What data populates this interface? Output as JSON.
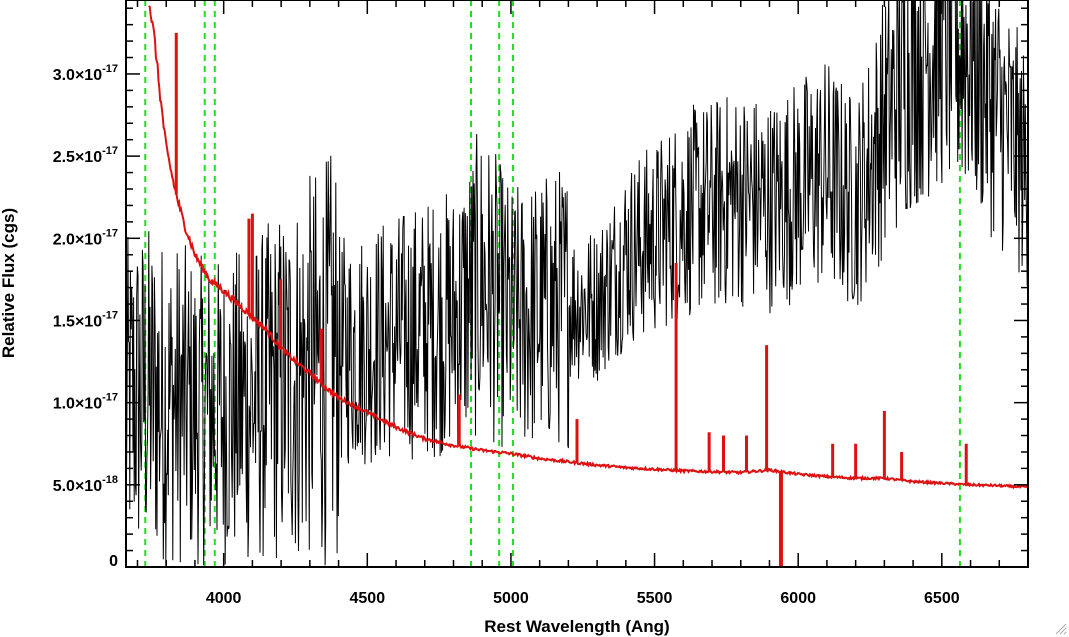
{
  "chart_data": {
    "type": "line",
    "title": "",
    "xlabel": "Rest Wavelength (Ang)",
    "ylabel": "Relative Flux (cgs)",
    "xlim": [
      3660,
      6800
    ],
    "ylim": [
      0,
      3.45e-17
    ],
    "x_ticks": [
      {
        "value": 4000,
        "label": "4000"
      },
      {
        "value": 4500,
        "label": "4500"
      },
      {
        "value": 5000,
        "label": "5000"
      },
      {
        "value": 5500,
        "label": "5500"
      },
      {
        "value": 6000,
        "label": "6000"
      },
      {
        "value": 6500,
        "label": "6500"
      }
    ],
    "x_minor_step": 100,
    "y_ticks": [
      {
        "value": 0,
        "mantissa": "0",
        "exponent": ""
      },
      {
        "value": 5e-18,
        "mantissa": "5.0×10",
        "exponent": "-18"
      },
      {
        "value": 1e-17,
        "mantissa": "1.0×10",
        "exponent": "-17"
      },
      {
        "value": 1.5e-17,
        "mantissa": "1.5×10",
        "exponent": "-17"
      },
      {
        "value": 2e-17,
        "mantissa": "2.0×10",
        "exponent": "-17"
      },
      {
        "value": 2.5e-17,
        "mantissa": "2.5×10",
        "exponent": "-17"
      },
      {
        "value": 3e-17,
        "mantissa": "3.0×10",
        "exponent": "-17"
      }
    ],
    "y_minor_step": 1e-18,
    "grid": false,
    "legend": "none",
    "reference_lines": {
      "color": "#22dd22",
      "style": "dashed",
      "x": [
        3727,
        3934,
        3969,
        4861,
        4959,
        5007,
        6563
      ]
    },
    "series": [
      {
        "color": "#000000",
        "style": "noisy",
        "x": [
          3660,
          3700,
          3750,
          3800,
          3850,
          3900,
          3950,
          4000,
          4100,
          4200,
          4300,
          4400,
          4500,
          4600,
          4700,
          4800,
          4900,
          5000,
          5100,
          5200,
          5300,
          5400,
          5500,
          5600,
          5700,
          5800,
          5900,
          6000,
          6100,
          6200,
          6300,
          6400,
          6500,
          6600,
          6700,
          6800
        ],
        "y": [
          1e-17,
          1.05e-17,
          1.05e-17,
          1e-17,
          1e-17,
          9.5e-18,
          9.5e-18,
          9.5e-18,
          1e-17,
          1.1e-17,
          1.2e-17,
          1.3e-17,
          1.35e-17,
          1.4e-17,
          1.45e-17,
          1.5e-17,
          1.75e-17,
          1.5e-17,
          1.55e-17,
          1.6e-17,
          1.6e-17,
          1.9e-17,
          2e-17,
          2.15e-17,
          2.2e-17,
          2.25e-17,
          2.2e-17,
          2.3e-17,
          2.4e-17,
          2.2e-17,
          2.7e-17,
          3.1e-17,
          3.25e-17,
          3.15e-17,
          2.75e-17,
          2.4e-17
        ]
      },
      {
        "color": "#dd1111",
        "style": "smooth",
        "x": [
          3740,
          3760,
          3780,
          3800,
          3830,
          3860,
          3900,
          3950,
          4000,
          4050,
          4100,
          4150,
          4200,
          4250,
          4300,
          4350,
          4400,
          4500,
          4600,
          4700,
          4800,
          4900,
          5000,
          5100,
          5200,
          5300,
          5400,
          5500,
          5600,
          5700,
          5800,
          5900,
          6000,
          6100,
          6200,
          6300,
          6400,
          6500,
          6600,
          6700,
          6800
        ],
        "y": [
          3.45e-17,
          3.2e-17,
          2.85e-17,
          2.55e-17,
          2.3e-17,
          2.1e-17,
          1.9e-17,
          1.75e-17,
          1.68e-17,
          1.6e-17,
          1.52e-17,
          1.44e-17,
          1.33e-17,
          1.25e-17,
          1.18e-17,
          1.1e-17,
          1.03e-17,
          9.4e-18,
          8.5e-18,
          7.8e-18,
          7.4e-18,
          7.1e-18,
          6.9e-18,
          6.6e-18,
          6.4e-18,
          6.2e-18,
          6.05e-18,
          5.95e-18,
          5.85e-18,
          5.8e-18,
          5.75e-18,
          5.9e-18,
          5.65e-18,
          5.5e-18,
          5.4e-18,
          5.4e-18,
          5.2e-18,
          5.1e-18,
          5e-18,
          4.95e-18,
          4.85e-18
        ]
      }
    ],
    "red_spikes": [
      {
        "x": 3835,
        "y": 3.25e-17
      },
      {
        "x": 4088,
        "y": 2.12e-17
      },
      {
        "x": 4100,
        "y": 2.15e-17
      },
      {
        "x": 4198,
        "y": 1.75e-17
      },
      {
        "x": 4340,
        "y": 1.45e-17
      },
      {
        "x": 4820,
        "y": 1.05e-17
      },
      {
        "x": 5230,
        "y": 9e-18
      },
      {
        "x": 5575,
        "y": 1.85e-17
      },
      {
        "x": 5690,
        "y": 8.2e-18
      },
      {
        "x": 5740,
        "y": 8e-18
      },
      {
        "x": 5820,
        "y": 8e-18
      },
      {
        "x": 5890,
        "y": 1.35e-17
      },
      {
        "x": 6120,
        "y": 7.5e-18
      },
      {
        "x": 6200,
        "y": 7.5e-18
      },
      {
        "x": 6300,
        "y": 9.5e-18
      },
      {
        "x": 6360,
        "y": 7e-18
      },
      {
        "x": 6585,
        "y": 7.5e-18
      }
    ],
    "red_dips": [
      {
        "x": 5940,
        "y": 0
      }
    ]
  }
}
